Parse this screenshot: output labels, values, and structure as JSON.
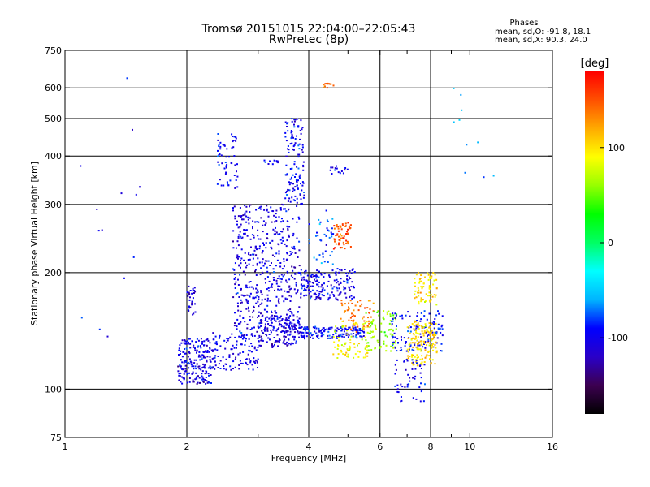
{
  "chart_data": {
    "type": "scatter",
    "title": "Tromsø 20151015 22:04:00–22:05:43",
    "subtitle": "RwPretec (8p)",
    "xlabel": "Frequency [MHz]",
    "ylabel": "Stationary phase Virtual Height [km]",
    "x_scale": "log",
    "y_scale": "log",
    "xlim": [
      1,
      16
    ],
    "ylim": [
      75,
      750
    ],
    "x_ticks": [
      1,
      2,
      4,
      6,
      8,
      10,
      16
    ],
    "x_tick_labels": [
      "1",
      "2",
      "4",
      "6",
      "8",
      "10",
      "16"
    ],
    "x_grid": [
      2,
      4,
      6,
      8
    ],
    "x_minor": [
      3,
      5,
      7,
      9
    ],
    "y_ticks": [
      75,
      100,
      200,
      300,
      400,
      500,
      600,
      750
    ],
    "y_tick_labels": [
      "75",
      "100",
      "200",
      "300",
      "400",
      "500",
      "600",
      "750"
    ],
    "y_grid": [
      100,
      200,
      300,
      400,
      500,
      600
    ],
    "grid": true,
    "stats": {
      "heading": "Phases",
      "line1": "mean, sd,O: -91.8, 18.1",
      "line2": "mean, sd,X:  90.3, 24.0"
    },
    "colorbar": {
      "label": "[deg]",
      "min": -180,
      "max": 180,
      "ticks": [
        100,
        0,
        -100
      ],
      "tick_labels": [
        "100",
        "0",
        "-100"
      ],
      "colors": [
        "#000000",
        "#3c0050",
        "#2a00c8",
        "#0000ff",
        "#00b4ff",
        "#00ffff",
        "#00ff64",
        "#00ff00",
        "#96ff00",
        "#ffff00",
        "#ffaa00",
        "#ff5000",
        "#ff0000"
      ]
    },
    "clusters": [
      {
        "f": [
          1.9,
          2.3
        ],
        "h": [
          103,
          135
        ],
        "phase": -105,
        "n": 200
      },
      {
        "f": [
          2.3,
          3.0
        ],
        "h": [
          112,
          140
        ],
        "phase": -100,
        "n": 130
      },
      {
        "f": [
          3.0,
          3.8
        ],
        "h": [
          128,
          155
        ],
        "phase": -110,
        "n": 150
      },
      {
        "f": [
          2.6,
          3.8
        ],
        "h": [
          140,
          300
        ],
        "phase": -105,
        "n": 500
      },
      {
        "f": [
          3.5,
          3.9
        ],
        "h": [
          300,
          500
        ],
        "phase": -95,
        "n": 130
      },
      {
        "f": [
          3.75,
          5.5
        ],
        "h": [
          135,
          145
        ],
        "phase": -95,
        "n": 160
      },
      {
        "f": [
          3.8,
          5.2
        ],
        "h": [
          170,
          205
        ],
        "phase": -100,
        "n": 180
      },
      {
        "f": [
          4.0,
          4.6
        ],
        "h": [
          210,
          290
        ],
        "phase": -80,
        "n": 40
      },
      {
        "f": [
          4.6,
          5.1
        ],
        "h": [
          230,
          270
        ],
        "phase": 150,
        "n": 60
      },
      {
        "f": [
          4.8,
          5.8
        ],
        "h": [
          140,
          170
        ],
        "phase": 140,
        "n": 60
      },
      {
        "f": [
          4.6,
          5.6
        ],
        "h": [
          120,
          150
        ],
        "phase": 90,
        "n": 80
      },
      {
        "f": [
          5.5,
          6.6
        ],
        "h": [
          125,
          160
        ],
        "phase": 60,
        "n": 80
      },
      {
        "f": [
          6.4,
          8.6
        ],
        "h": [
          125,
          160
        ],
        "phase": -95,
        "n": 120
      },
      {
        "f": [
          7.0,
          8.3
        ],
        "h": [
          115,
          150
        ],
        "phase": 105,
        "n": 150
      },
      {
        "f": [
          7.3,
          8.3
        ],
        "h": [
          165,
          200
        ],
        "phase": 100,
        "n": 70
      },
      {
        "f": [
          6.5,
          7.8
        ],
        "h": [
          93,
          120
        ],
        "phase": -100,
        "n": 50
      },
      {
        "f": [
          2.38,
          2.68
        ],
        "h": [
          330,
          470
        ],
        "phase": -95,
        "n": 60
      },
      {
        "f": [
          2.0,
          2.1
        ],
        "h": [
          155,
          185
        ],
        "phase": -105,
        "n": 30
      },
      {
        "f": [
          4.35,
          4.65
        ],
        "h": [
          600,
          620
        ],
        "phase": 140,
        "n": 12
      },
      {
        "f": [
          4.5,
          5.0
        ],
        "h": [
          360,
          380
        ],
        "phase": -100,
        "n": 15
      },
      {
        "f": [
          3.1,
          3.4
        ],
        "h": [
          380,
          390
        ],
        "phase": -95,
        "n": 10
      },
      {
        "f": [
          1.05,
          1.6
        ],
        "h": [
          110,
          640
        ],
        "phase": -100,
        "n": 14
      },
      {
        "f": [
          9.0,
          12.0
        ],
        "h": [
          350,
          620
        ],
        "phase": -60,
        "n": 10
      }
    ]
  }
}
